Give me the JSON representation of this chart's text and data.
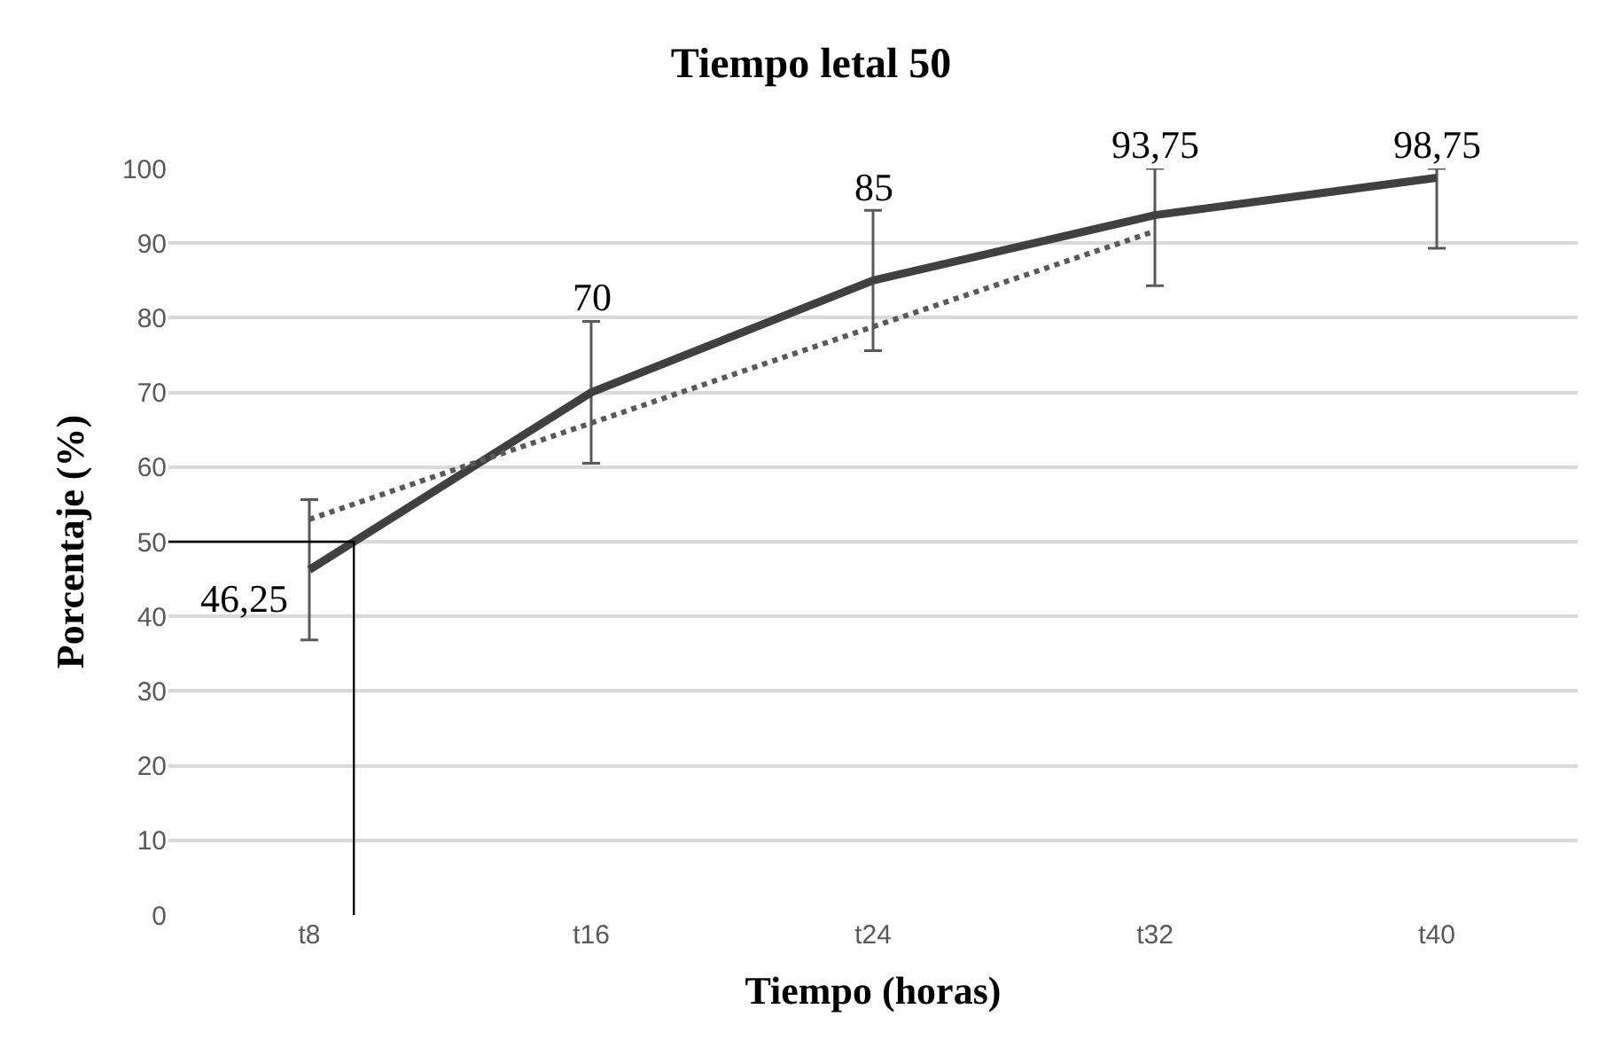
{
  "chart_data": {
    "type": "line",
    "title": "Tiempo letal 50",
    "xlabel": "Tiempo (horas)",
    "ylabel": "Porcentaje (%)",
    "categories": [
      "t8",
      "t16",
      "t24",
      "t32",
      "t40"
    ],
    "ylim": [
      0,
      100
    ],
    "yticks": [
      0,
      10,
      20,
      30,
      40,
      50,
      60,
      70,
      80,
      90,
      100
    ],
    "grid": "y",
    "marker": "none",
    "series": [
      {
        "color": "#404040",
        "values": [
          46.25,
          70,
          85,
          93.75,
          98.75
        ],
        "errors": [
          9.4,
          9.5,
          9.4,
          [
            84.3,
            100
          ],
          [
            89.3,
            100
          ]
        ],
        "value_labels": [
          "46,25",
          "70",
          "85",
          "93,75",
          "98,75"
        ]
      },
      {
        "type": "line",
        "color": "#595959",
        "line_style": "dotted",
        "values": [
          53.0,
          65.9,
          78.8,
          91.6,
          null
        ]
      }
    ],
    "ref_lines": [
      {
        "axis": "y",
        "value": 50,
        "color": "#000000"
      }
    ]
  }
}
